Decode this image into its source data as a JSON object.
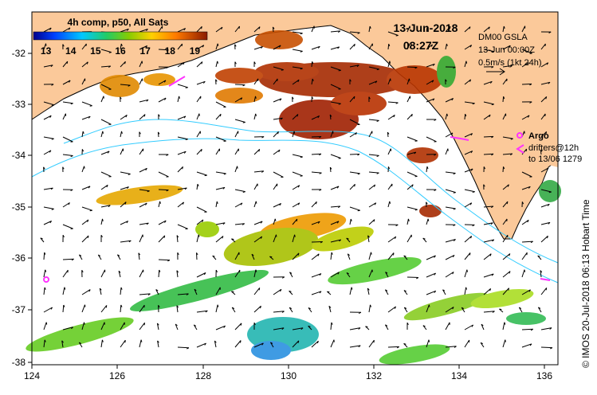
{
  "map": {
    "colorbar": {
      "title": "4h comp, p50, All Sats",
      "ticks": [
        "13",
        "14",
        "15",
        "16",
        "17",
        "18",
        "19"
      ],
      "min": 12.5,
      "max": 19.5
    },
    "date": "13-Jun-2018",
    "time": "08:27Z",
    "product": "DM00 GSLA",
    "product_date": "13-Jun 00:00Z",
    "scale_label": "0.5m/s (1kt 24h)",
    "argo_label": "Argo",
    "drifters_label": "drifters@12h",
    "drifters_to": "to 13/06 1279",
    "credit": "© IMOS 20-Jul-2018 06:13 Hobart Time",
    "lon_ticks": [
      "124",
      "126",
      "128",
      "130",
      "132",
      "134",
      "136"
    ],
    "lat_ticks": [
      "-32",
      "-33",
      "-34",
      "-35",
      "-36",
      "-37",
      "-38"
    ],
    "colors": {
      "land": "#fbc99a",
      "argo": "#ff33ff",
      "contour": "#33ccff",
      "sea": "#ffffff"
    }
  }
}
